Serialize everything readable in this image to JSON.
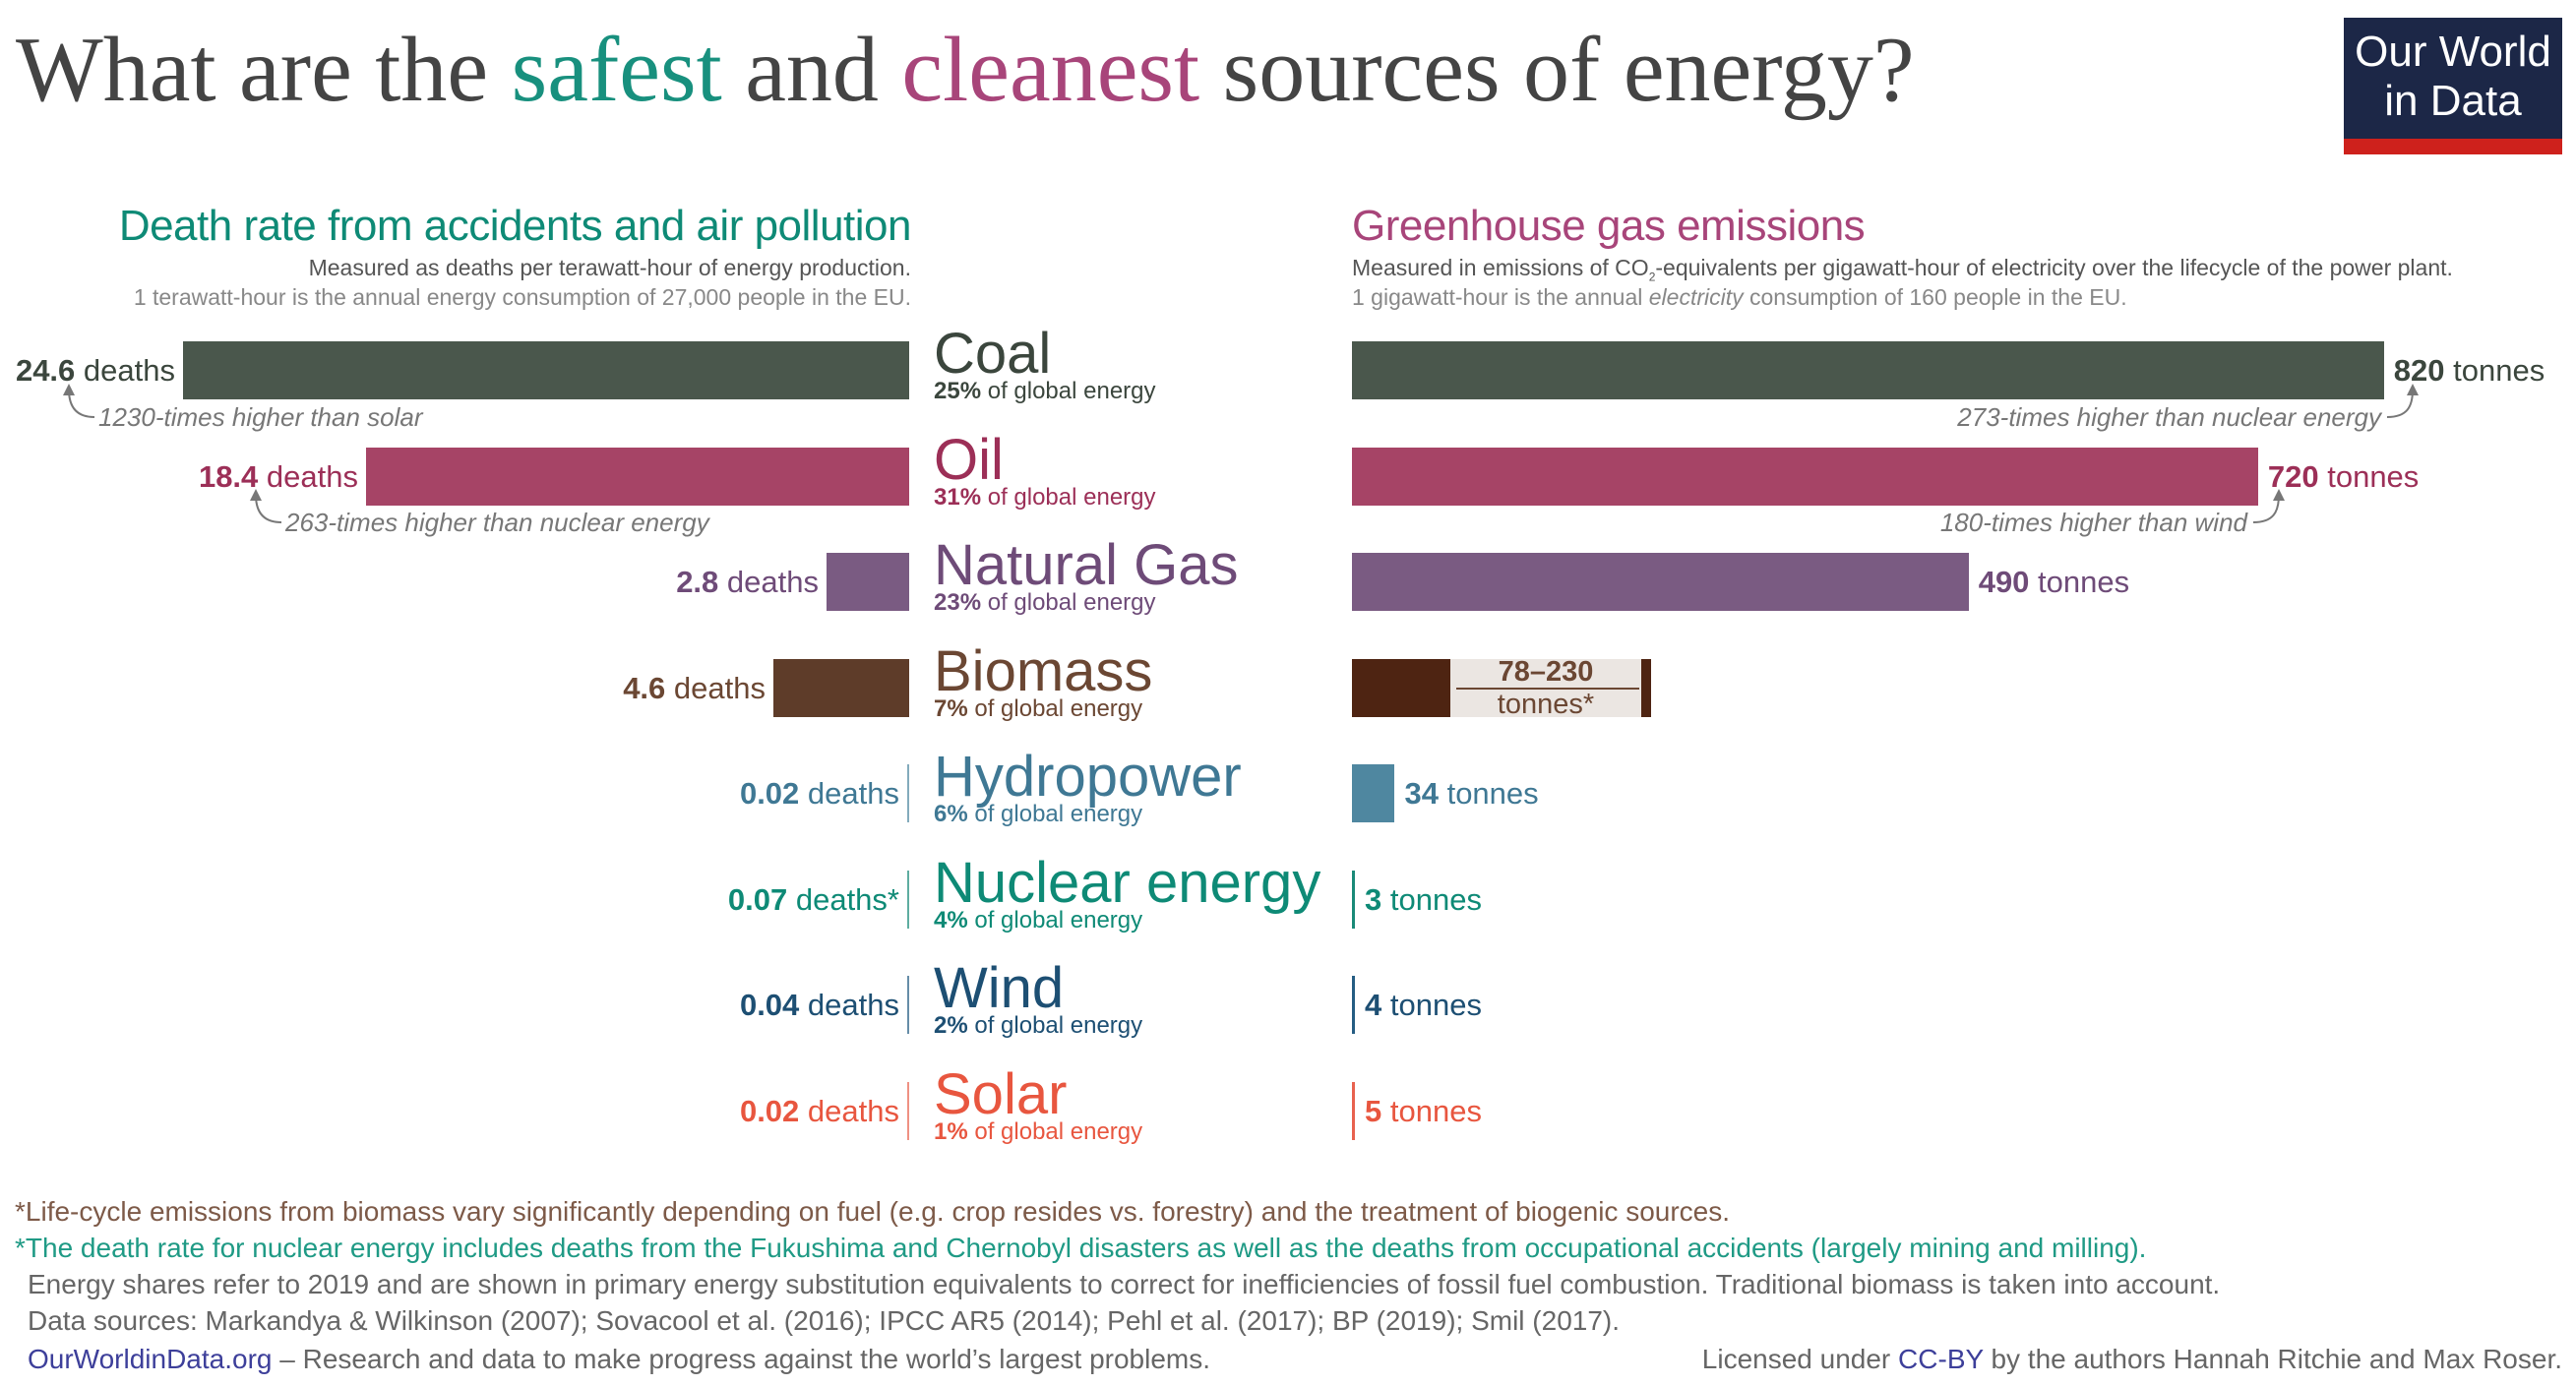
{
  "title": {
    "pre": "What are the ",
    "safest": "safest",
    "mid": " and ",
    "cleanest": "cleanest",
    "post": " sources of energy?"
  },
  "logo": {
    "line1": "Our World",
    "line2": "in Data"
  },
  "left_header": {
    "title": "Death rate from accidents and air pollution",
    "subtitle": "Measured as deaths per terawatt-hour of energy production.",
    "note": "1 terawatt-hour is the annual energy consumption of 27,000 people in the EU."
  },
  "right_header": {
    "title": "Greenhouse gas emissions",
    "subtitle_pre": "Measured in emissions of CO",
    "subtitle_sub": "2",
    "subtitle_post": "-equivalents per gigawatt-hour of electricity over the lifecycle of the power plant.",
    "note_pre": "1 gigawatt-hour is the annual ",
    "note_em": "electricity",
    "note_post": " consumption of 160 people in the EU."
  },
  "colors": {
    "title": "#18907e",
    "clean": "#a8457a"
  },
  "chart_data": {
    "type": "bar",
    "categories": [
      "Coal",
      "Oil",
      "Natural Gas",
      "Biomass",
      "Hydropower",
      "Nuclear energy",
      "Wind",
      "Solar"
    ],
    "series": [
      {
        "name": "Death rate from accidents and air pollution",
        "unit": "deaths",
        "values": [
          24.6,
          18.4,
          2.8,
          4.6,
          0.02,
          0.07,
          0.04,
          0.02
        ],
        "labels": [
          "24.6",
          "18.4",
          "2.8",
          "4.6",
          "0.02",
          "0.07",
          "0.04",
          "0.02"
        ],
        "suffix": [
          " deaths",
          " deaths",
          " deaths",
          " deaths",
          " deaths",
          " deaths*",
          " deaths",
          " deaths"
        ]
      },
      {
        "name": "Greenhouse gas emissions",
        "unit": "tonnes",
        "values": [
          820,
          720,
          490,
          [
            78,
            230
          ],
          34,
          3,
          4,
          5
        ],
        "labels": [
          "820",
          "720",
          "490",
          "78–230",
          "34",
          "3",
          "4",
          "5"
        ],
        "suffix": [
          " tonnes",
          " tonnes",
          " tonnes",
          "tonnes*",
          " tonnes",
          " tonnes",
          " tonnes",
          " tonnes"
        ]
      }
    ],
    "shares": [
      "25%",
      "31%",
      "23%",
      "7%",
      "6%",
      "4%",
      "2%",
      "1%"
    ],
    "share_suffix": " of global energy",
    "colors": [
      "#4a574c",
      "#a64466",
      "#7a5b82",
      "#5e3c29",
      "#4f87a0",
      "#1a8a78",
      "#255d83",
      "#e8624f"
    ],
    "text_colors": [
      "#3b463d",
      "#9c2f57",
      "#6e4b78",
      "#6b4733",
      "#3f7894",
      "#0e8a76",
      "#1d4f73",
      "#e8563f"
    ],
    "biomass_range_color": "#4e2412",
    "biomass_range_bg": "#ebe6e2",
    "annotations": {
      "coal_left": "1230-times higher than solar",
      "oil_left": "263-times higher than nuclear energy",
      "coal_right": "273-times higher than nuclear energy",
      "oil_right": "180-times higher than wind"
    }
  },
  "footer": {
    "biomass_note": "*Life-cycle emissions from biomass vary significantly depending on fuel (e.g. crop resides vs. forestry) and the treatment of biogenic sources.",
    "nuclear_note": "*The death rate for nuclear energy includes deaths from the Fukushima and Chernobyl disasters as well as the deaths from occupational accidents (largely mining and milling).",
    "shares_note": "Energy shares refer to 2019 and are shown in primary energy substitution equivalents to correct for inefficiencies of fossil fuel combustion. Traditional biomass is taken into account.",
    "sources": "Data sources: Markandya & Wilkinson (2007); Sovacool et al. (2016); IPCC AR5 (2014); Pehl et al. (2017); BP (2019); Smil (2017).",
    "site": "OurWorldinData.org",
    "tagline": " – Research and data to make progress against the world’s largest problems.",
    "license_pre": "Licensed under ",
    "license_link": "CC-BY",
    "license_post": " by the authors Hannah Ritchie and Max Roser."
  }
}
